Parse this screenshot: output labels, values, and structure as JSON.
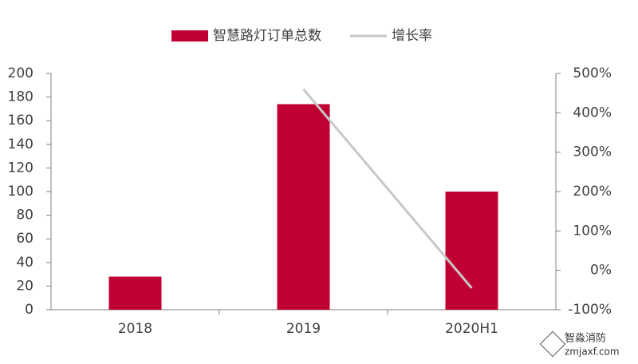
{
  "chart_data": {
    "type": "bar",
    "categories": [
      "2018",
      "2019",
      "2020H1"
    ],
    "series": [
      {
        "name": "智慧路灯订单总数",
        "type": "bar",
        "color": "#c00032",
        "values": [
          28,
          174,
          100
        ]
      },
      {
        "name": "增长率",
        "type": "line",
        "axis": "y2",
        "color": "#c8c8c8",
        "values": [
          null,
          460,
          -45
        ]
      }
    ],
    "ylim": [
      0,
      200
    ],
    "yticks": [
      0,
      20,
      40,
      60,
      80,
      100,
      120,
      140,
      160,
      180,
      200
    ],
    "y2lim": [
      -100,
      500
    ],
    "y2ticks": [
      {
        "value": -100,
        "label": "-100%"
      },
      {
        "value": 0,
        "label": "0%"
      },
      {
        "value": 100,
        "label": "100%"
      },
      {
        "value": 200,
        "label": "200%"
      },
      {
        "value": 300,
        "label": "300%"
      },
      {
        "value": 400,
        "label": "400%"
      },
      {
        "value": 500,
        "label": "500%"
      }
    ],
    "legend": "top",
    "grid": false
  },
  "watermark": {
    "name": "智淼消防",
    "site": "zmjaxf.com"
  }
}
